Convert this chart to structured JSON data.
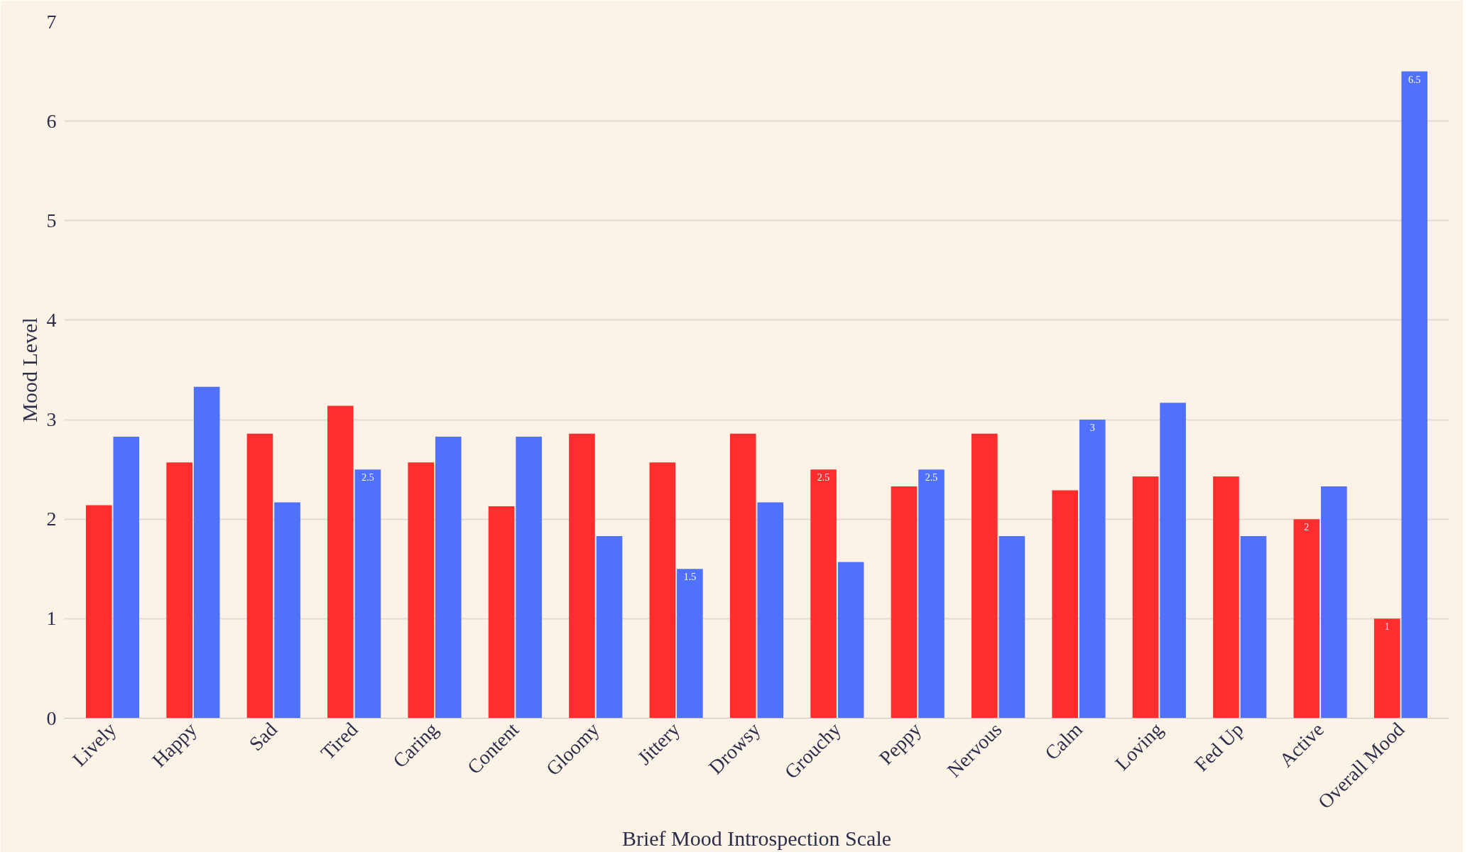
{
  "chart_data": {
    "type": "bar",
    "xlabel": "Brief Mood Introspection Scale",
    "ylabel": "Mood Level",
    "categories": [
      "Lively",
      "Happy",
      "Sad",
      "Tired",
      "Caring",
      "Content",
      "Gloomy",
      "Jittery",
      "Drowsy",
      "Grouchy",
      "Peppy",
      "Nervous",
      "Calm",
      "Loving",
      "Fed Up",
      "Active",
      "Overall Mood"
    ],
    "series": [
      {
        "color": "#fe2e2e",
        "values": [
          2.14,
          2.57,
          2.86,
          3.14,
          2.57,
          2.13,
          2.86,
          2.57,
          2.86,
          2.5,
          2.33,
          2.86,
          2.29,
          2.43,
          2.43,
          2,
          1
        ],
        "value_labels": [
          null,
          null,
          null,
          null,
          null,
          null,
          null,
          null,
          null,
          "2.5",
          null,
          null,
          null,
          null,
          null,
          "2",
          "1"
        ]
      },
      {
        "color": "#4f71fb",
        "values": [
          2.83,
          3.33,
          2.17,
          2.5,
          2.83,
          2.83,
          1.83,
          1.5,
          2.17,
          1.57,
          2.5,
          1.83,
          3,
          3.17,
          1.83,
          2.33,
          6.5
        ],
        "value_labels": [
          null,
          null,
          null,
          "2.5",
          null,
          null,
          null,
          "1.5",
          null,
          null,
          "2.5",
          null,
          "3",
          null,
          null,
          null,
          "6.5"
        ]
      }
    ],
    "ylim": [
      0,
      7
    ],
    "yticks": [
      0,
      1,
      2,
      3,
      4,
      5,
      6,
      7
    ],
    "grid": "y"
  }
}
